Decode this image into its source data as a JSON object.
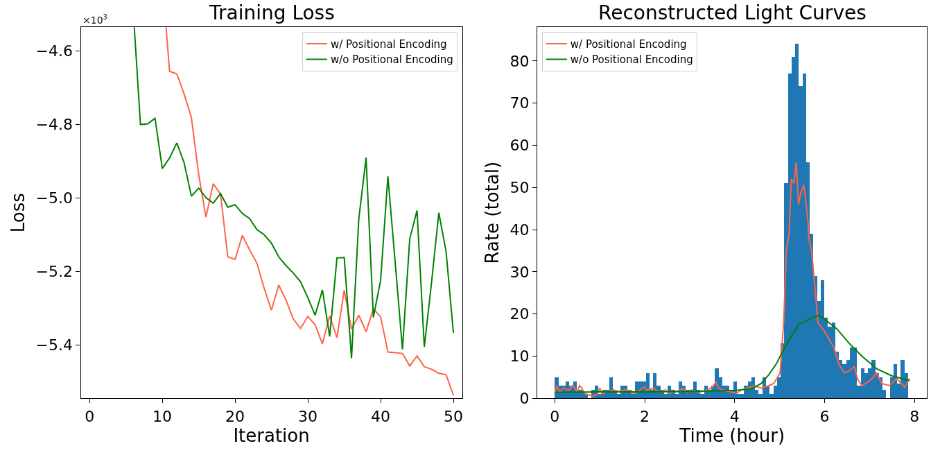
{
  "chart_data": [
    {
      "type": "line",
      "title": "Training Loss",
      "xlabel": "Iteration",
      "ylabel": "Loss",
      "annotations": [
        "×10$^{3}$"
      ],
      "xlim": [
        -1.2,
        51.2
      ],
      "xticks": [
        0,
        10,
        20,
        30,
        40,
        50
      ],
      "ylim": [
        -5.545,
        -4.535
      ],
      "yticks": [
        {
          "value": -4.6,
          "label": "−4.6"
        },
        {
          "value": -4.8,
          "label": "−4.8"
        },
        {
          "value": -5.0,
          "label": "−5.0"
        },
        {
          "value": -5.2,
          "label": "−5.2"
        },
        {
          "value": -5.4,
          "label": "−5.4"
        }
      ],
      "legend": "top right",
      "line_style": "solid",
      "marker": "none",
      "series": [
        {
          "name": "w/ Positional Encoding",
          "color": "#ff6347",
          "x": [
            10.52,
            11,
            12,
            13,
            14,
            15,
            16,
            17,
            18,
            19,
            20,
            21,
            22,
            23,
            24,
            25,
            26,
            27,
            28,
            29,
            30,
            31,
            32,
            33,
            34,
            35,
            36,
            37,
            38,
            39,
            40,
            41,
            42,
            43,
            44,
            45,
            46,
            47,
            48,
            49,
            50
          ],
          "values": [
            -4.535,
            -4.655,
            -4.662,
            -4.717,
            -4.781,
            -4.936,
            -5.052,
            -4.961,
            -4.989,
            -5.16,
            -5.167,
            -5.102,
            -5.141,
            -5.177,
            -5.246,
            -5.305,
            -5.237,
            -5.278,
            -5.329,
            -5.355,
            -5.322,
            -5.345,
            -5.397,
            -5.321,
            -5.38,
            -5.251,
            -5.357,
            -5.319,
            -5.364,
            -5.302,
            -5.323,
            -5.419,
            -5.421,
            -5.423,
            -5.457,
            -5.43,
            -5.459,
            -5.466,
            -5.477,
            -5.481,
            -5.537
          ]
        },
        {
          "name": "w/o Positional Encoding",
          "color": "#008000",
          "x": [
            6.15,
            7,
            8,
            9,
            10,
            11,
            12,
            13,
            14,
            15,
            16,
            17,
            18,
            19,
            20,
            21,
            22,
            23,
            24,
            25,
            26,
            27,
            28,
            29,
            30,
            31,
            32,
            33,
            34,
            35,
            36,
            37,
            38,
            39,
            40,
            41,
            42,
            43,
            44,
            45,
            46,
            47,
            48,
            49,
            50
          ],
          "values": [
            -4.535,
            -4.8,
            -4.798,
            -4.783,
            -4.92,
            -4.891,
            -4.85,
            -4.904,
            -4.995,
            -4.973,
            -4.999,
            -5.014,
            -4.988,
            -5.025,
            -5.018,
            -5.042,
            -5.056,
            -5.086,
            -5.1,
            -5.123,
            -5.16,
            -5.184,
            -5.204,
            -5.228,
            -5.271,
            -5.319,
            -5.25,
            -5.377,
            -5.163,
            -5.162,
            -5.436,
            -5.057,
            -4.89,
            -5.325,
            -5.224,
            -4.941,
            -5.175,
            -5.412,
            -5.111,
            -5.034,
            -5.405,
            -5.229,
            -5.04,
            -5.147,
            -5.367
          ]
        }
      ]
    },
    {
      "type": "histogram",
      "title": "Reconstructed Light Curves",
      "xlabel": "Time (hour)",
      "ylabel": "Rate (total)",
      "color": "#1f77b4",
      "xlim": [
        -0.39,
        8.28
      ],
      "xticks": [
        0,
        2,
        4,
        6,
        8
      ],
      "ylim": [
        0,
        88
      ],
      "yticks": [
        0,
        10,
        20,
        30,
        40,
        50,
        60,
        70,
        80
      ],
      "legend": "top left",
      "line_style": "solid",
      "marker": "none",
      "bins": [
        0,
        0.081,
        0.162,
        0.243,
        0.324,
        0.405,
        0.486,
        0.567,
        0.648,
        0.729,
        0.81,
        0.891,
        0.972,
        1.053,
        1.134,
        1.215,
        1.296,
        1.377,
        1.458,
        1.539,
        1.62,
        1.701,
        1.782,
        1.863,
        1.944,
        2.025,
        2.106,
        2.187,
        2.268,
        2.349,
        2.43,
        2.511,
        2.592,
        2.673,
        2.754,
        2.835,
        2.916,
        2.997,
        3.078,
        3.159,
        3.24,
        3.321,
        3.402,
        3.483,
        3.564,
        3.645,
        3.726,
        3.807,
        3.888,
        3.969,
        4.05,
        4.131,
        4.212,
        4.293,
        4.374,
        4.455,
        4.536,
        4.617,
        4.698,
        4.779,
        4.86,
        4.941,
        5.022,
        5.103,
        5.184,
        5.265,
        5.346,
        5.427,
        5.508,
        5.589,
        5.67,
        5.751,
        5.832,
        5.913,
        5.994,
        6.075,
        6.156,
        6.237,
        6.318,
        6.399,
        6.48,
        6.561,
        6.642,
        6.723,
        6.804,
        6.885,
        6.966,
        7.047,
        7.128,
        7.209,
        7.29,
        7.371,
        7.452,
        7.533,
        7.614,
        7.695,
        7.776,
        7.857
      ],
      "values": [
        5,
        3,
        3,
        4,
        3,
        4,
        2,
        2,
        1,
        0,
        2,
        3,
        1,
        2,
        2,
        5,
        2,
        1,
        3,
        3,
        2,
        1,
        4,
        4,
        4,
        6,
        2,
        6,
        3,
        2,
        1,
        3,
        2,
        1,
        4,
        3,
        2,
        2,
        4,
        2,
        1,
        3,
        2,
        3,
        7,
        5,
        3,
        3,
        2,
        4,
        1,
        1,
        3,
        4,
        5,
        2,
        1,
        5,
        3,
        1,
        3,
        5,
        13,
        51,
        77,
        81,
        84,
        74,
        77,
        56,
        39,
        29,
        23,
        28,
        19,
        17,
        18,
        11,
        9,
        8,
        9,
        12,
        12,
        3,
        7,
        6,
        7,
        9,
        6,
        5,
        2,
        0,
        5,
        8,
        3.5,
        9,
        6
      ],
      "series": [
        {
          "type": "line",
          "name": "w/ Positional Encoding",
          "color": "#ff6347",
          "x": [
            0,
            0.05,
            0.1,
            0.2,
            0.3,
            0.4,
            0.5,
            0.55,
            0.6,
            0.65,
            0.75,
            0.85,
            0.95,
            1.0,
            1.05,
            1.15,
            1.3,
            1.4,
            1.5,
            1.6,
            1.7,
            1.8,
            1.9,
            2.0,
            2.05,
            2.2,
            2.3,
            2.45,
            2.55,
            2.7,
            2.85,
            2.95,
            3.05,
            3.2,
            3.35,
            3.5,
            3.58,
            3.65,
            3.8,
            3.95,
            4.05,
            4.15,
            4.3,
            4.45,
            4.59,
            4.76,
            4.87,
            5.01,
            5.09,
            5.15,
            5.21,
            5.26,
            5.32,
            5.37,
            5.42,
            5.48,
            5.54,
            5.63,
            5.65,
            5.71,
            5.79,
            5.85,
            5.99,
            6.1,
            6.21,
            6.32,
            6.44,
            6.55,
            6.66,
            6.74,
            6.83,
            6.99,
            7.16,
            7.27,
            7.44,
            7.61,
            7.78,
            7.89
          ],
          "values": [
            1.3,
            3,
            1.5,
            2.5,
            1.8,
            3,
            1.5,
            3,
            2.5,
            1.2,
            0.8,
            0.5,
            1,
            2.5,
            1,
            1.5,
            2,
            1.6,
            1.8,
            2.1,
            1.3,
            1.2,
            2,
            2.8,
            1.8,
            2.5,
            1.4,
            2,
            1.2,
            1.6,
            2.3,
            1.3,
            2,
            1.4,
            1.8,
            2.6,
            3.8,
            2.3,
            1.8,
            1.4,
            1.2,
            2,
            2.5,
            2.9,
            2.4,
            3,
            3.5,
            6,
            18,
            35,
            39,
            52,
            51,
            56,
            46,
            49,
            50.6,
            42,
            38,
            35,
            26,
            18,
            16,
            14,
            12,
            8,
            6,
            6.5,
            7.5,
            4.4,
            3,
            4,
            6,
            3.5,
            3,
            4.7,
            2.6,
            4.7
          ]
        },
        {
          "type": "line",
          "name": "w/o Positional Encoding",
          "color": "#008000",
          "x": [
            0,
            1,
            2,
            3,
            4.03,
            4.37,
            4.59,
            4.76,
            4.93,
            5.07,
            5.26,
            5.43,
            5.88,
            6.27,
            6.55,
            6.83,
            7.16,
            7.5,
            7.89
          ],
          "values": [
            1.4,
            1.5,
            1.5,
            1.6,
            1.9,
            2.2,
            3.5,
            5.6,
            8.2,
            11.2,
            14.7,
            17.6,
            19.7,
            16.5,
            13,
            10,
            7,
            5.3,
            4.2
          ]
        }
      ]
    }
  ]
}
